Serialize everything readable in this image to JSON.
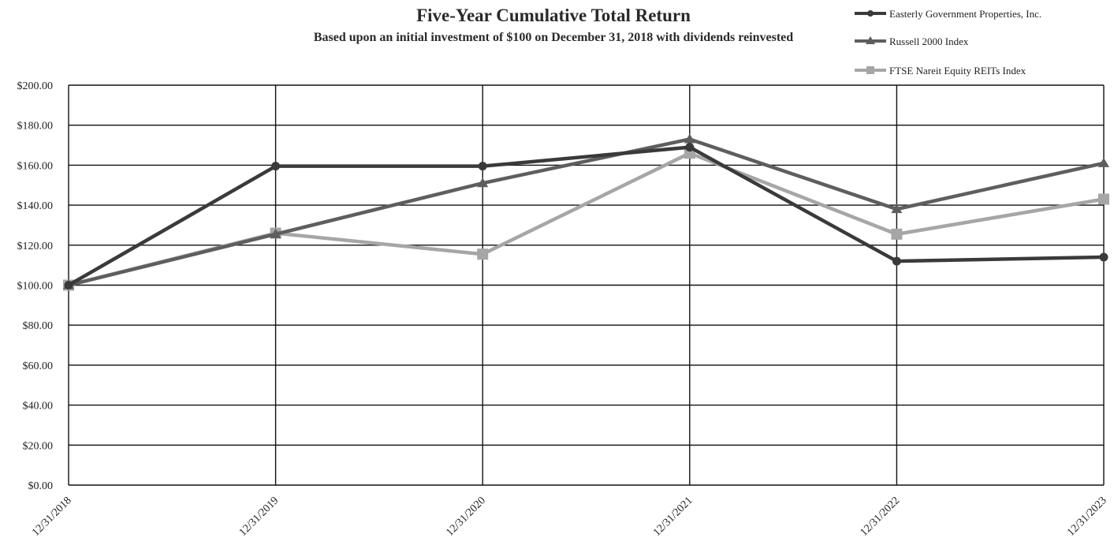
{
  "chart_data": {
    "type": "line",
    "title": "Five-Year Cumulative Total Return",
    "subtitle": "Based upon an initial investment of $100 on December 31, 2018 with dividends reinvested",
    "xlabel": "",
    "ylabel": "",
    "categories": [
      "12/31/2018",
      "12/31/2019",
      "12/31/2020",
      "12/31/2021",
      "12/31/2022",
      "12/31/2023"
    ],
    "ylim": [
      0,
      200
    ],
    "y_ticks": [
      "$0.00",
      "$20.00",
      "$40.00",
      "$60.00",
      "$80.00",
      "$100.00",
      "$120.00",
      "$140.00",
      "$160.00",
      "$180.00",
      "$200.00"
    ],
    "grid": true,
    "legend_position": "top-right",
    "series": [
      {
        "name": "Easterly Government Properties, Inc.",
        "values": [
          100,
          159.5,
          159.5,
          169,
          112,
          114
        ],
        "color": "#3a3a3a",
        "marker": "circle"
      },
      {
        "name": "Russell 2000 Index",
        "values": [
          100,
          125.5,
          151,
          173,
          138,
          161
        ],
        "color": "#5e5e5e",
        "marker": "triangle"
      },
      {
        "name": "FTSE Nareit Equity REITs Index",
        "values": [
          100,
          126,
          115.5,
          166,
          125.5,
          143
        ],
        "color": "#a6a6a6",
        "marker": "square"
      }
    ]
  }
}
